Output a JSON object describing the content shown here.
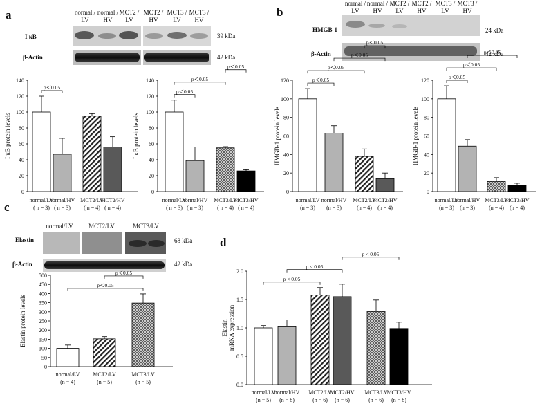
{
  "panels": {
    "a": "a",
    "b": "b",
    "c": "c",
    "d": "d"
  },
  "blots": {
    "a": {
      "lanes": [
        "normal / LV",
        "normal / HV",
        "MCT2 / LV",
        "MCT2/ HV",
        "MCT3 / LV",
        "MCT3/ HV"
      ],
      "proteins": [
        {
          "label": "I κB",
          "kda": "39 kDa"
        },
        {
          "label": "β-Actin",
          "kda": "42 kDa"
        }
      ]
    },
    "b": {
      "lanes": [
        "normal / LV",
        "normal / HV",
        "MCT2 / LV",
        "MCT2/ HV",
        "MCT3 / LV",
        "MCT3/ HV"
      ],
      "proteins": [
        {
          "label": "HMGB-1",
          "kda": "24 kDa"
        },
        {
          "label": "β-Actin",
          "kda": "42 kDa"
        }
      ]
    },
    "c": {
      "lanes": [
        "normal/LV",
        "MCT2/LV",
        "MCT3/LV"
      ],
      "proteins": [
        {
          "label": "Elastin",
          "kda": "68 kDa"
        },
        {
          "label": "β-Actin",
          "kda": "42 kDa"
        }
      ]
    }
  },
  "fills": {
    "white": "#ffffff",
    "gray": "#b3b3b3",
    "darkgray": "#595959",
    "black": "#000000",
    "hatch": "diagonal-stripes",
    "cross": "crosshatch"
  },
  "chart_data": [
    {
      "id": "a1",
      "type": "bar",
      "ylabel": "I κB  protein levels",
      "ylim": [
        0,
        140
      ],
      "ticks": [
        0,
        20,
        40,
        60,
        80,
        100,
        120,
        140
      ],
      "categories": [
        "normal/LV",
        "normal/HV",
        "MCT2/LV",
        "MCT2/HV"
      ],
      "n": [
        "( n = 3)",
        "( n = 3)",
        "( n = 4)",
        "( n = 4)"
      ],
      "values": [
        100,
        47,
        95,
        56
      ],
      "errors": [
        20,
        20,
        3,
        13
      ],
      "fills": [
        "white",
        "gray",
        "hatch",
        "darkgray"
      ],
      "sig": [
        {
          "from": 0,
          "to": 1,
          "label": "p＜0.05"
        }
      ]
    },
    {
      "id": "a2",
      "type": "bar",
      "ylabel": "I κB protein levels",
      "ylim": [
        0,
        140
      ],
      "ticks": [
        0,
        20,
        40,
        60,
        80,
        100,
        120,
        140
      ],
      "categories": [
        "normal/LV",
        "normal/HV",
        "MCT3/LV",
        "MCT3/HV"
      ],
      "n": [
        "( n = 3)",
        "( n = 3)",
        "( n = 4)",
        "( n = 4)"
      ],
      "values": [
        100,
        39,
        55,
        26
      ],
      "errors": [
        15,
        17,
        1.5,
        1.5
      ],
      "fills": [
        "white",
        "gray",
        "cross",
        "black"
      ],
      "sig": [
        {
          "from": 0,
          "to": 1,
          "label": "p＜0.05"
        },
        {
          "from": 0,
          "to": 2,
          "label": "p＜0.05"
        },
        {
          "from": 2,
          "to": 3,
          "label": "p＜0.05"
        }
      ]
    },
    {
      "id": "b1",
      "type": "bar",
      "ylabel": "HMGB-1 protein levels",
      "ylim": [
        0,
        120
      ],
      "ticks": [
        0,
        20,
        40,
        60,
        80,
        100,
        120
      ],
      "categories": [
        "normal/LV",
        "normal/HV",
        "MCT2/LV",
        "MCT2/HV"
      ],
      "n": [
        "(n = 3)",
        "(n = 3)",
        "(n = 4)",
        "(n = 4)"
      ],
      "values": [
        100,
        63,
        38,
        14
      ],
      "errors": [
        11,
        8,
        8,
        6
      ],
      "fills": [
        "white",
        "gray",
        "hatch",
        "darkgray"
      ],
      "sig": [
        {
          "from": 0,
          "to": 1,
          "label": "p＜0.05"
        },
        {
          "from": 0,
          "to": 2,
          "label": "p＜0.05"
        },
        {
          "from": 1,
          "to": 3,
          "label": "p＜0.05"
        },
        {
          "from": 2,
          "to": 3,
          "label": "p＜0.05"
        }
      ]
    },
    {
      "id": "b2",
      "type": "bar",
      "ylabel": "HMGB-1 protein levels",
      "ylim": [
        0,
        120
      ],
      "ticks": [
        0,
        20,
        40,
        60,
        80,
        100,
        120
      ],
      "categories": [
        "normal/LV",
        "normal/HV",
        "MCT3/LV",
        "MCT3/HV"
      ],
      "n": [
        "(n = 3)",
        "(n = 3)",
        "(n = 4)",
        "(n = 4)"
      ],
      "values": [
        100,
        49,
        11,
        7
      ],
      "errors": [
        14,
        7,
        4,
        2
      ],
      "fills": [
        "white",
        "gray",
        "cross",
        "black"
      ],
      "sig": [
        {
          "from": 0,
          "to": 1,
          "label": "p＜0.05"
        },
        {
          "from": 0,
          "to": 2,
          "label": "p＜0.05"
        },
        {
          "from": 1,
          "to": 3,
          "label": "p＜0.05"
        }
      ]
    },
    {
      "id": "c1",
      "type": "bar",
      "ylabel": "Elastin protein levels",
      "ylim": [
        0,
        500
      ],
      "ticks": [
        0,
        50,
        100,
        150,
        200,
        250,
        300,
        350,
        400,
        450,
        500
      ],
      "categories": [
        "normal/LV",
        "MCT2/LV",
        "MCT3/LV"
      ],
      "n": [
        "(n = 4)",
        "(n = 5)",
        "(n = 5)"
      ],
      "values": [
        100,
        152,
        348
      ],
      "errors": [
        18,
        12,
        50
      ],
      "fills": [
        "white",
        "hatch",
        "cross"
      ],
      "sig": [
        {
          "from": 0,
          "to": 2,
          "label": "p＜0.05"
        },
        {
          "from": 1,
          "to": 2,
          "label": "p＜0.05"
        }
      ]
    },
    {
      "id": "d1",
      "type": "bar",
      "ylabel": "Elastin",
      "ylabel2": "mRNA expression",
      "ylim": [
        0,
        2.0
      ],
      "ticks": [
        "0.0",
        "0.5",
        "1.0",
        "1.5",
        "2.0"
      ],
      "categories": [
        "normal/LV",
        "normal/HV",
        "MCT2/LV",
        "MCT2/HV",
        "MCT3/LV",
        "MCT3/HV"
      ],
      "n": [
        "(n = 5)",
        "(n = 8)",
        "(n = 6)",
        "(n = 6)",
        "(n = 6)",
        "(n = 8)"
      ],
      "values": [
        1.0,
        1.02,
        1.58,
        1.55,
        1.29,
        0.99
      ],
      "errors": [
        0.04,
        0.12,
        0.13,
        0.22,
        0.2,
        0.11
      ],
      "fills": [
        "white",
        "gray",
        "hatch",
        "darkgray",
        "cross",
        "black"
      ],
      "sig": [
        {
          "from": 0,
          "to": 2,
          "label": "p < 0.05"
        },
        {
          "from": 1,
          "to": 3,
          "label": "p < 0.05"
        },
        {
          "from": 3,
          "to": 5,
          "label": "p < 0.05"
        }
      ]
    }
  ]
}
